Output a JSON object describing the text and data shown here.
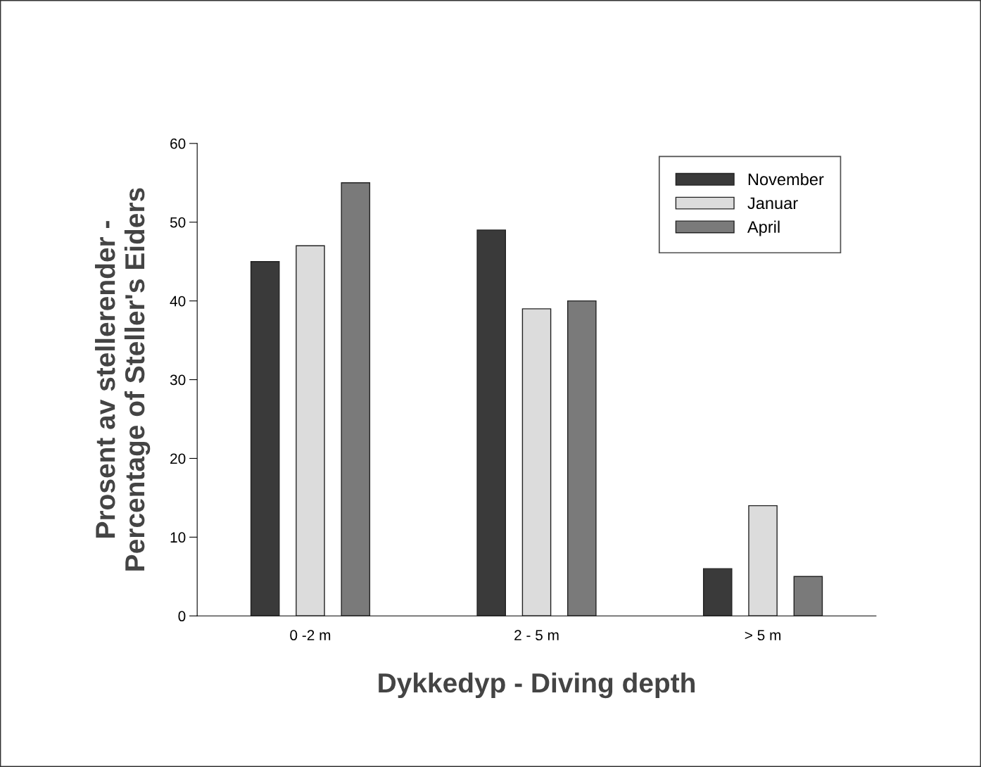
{
  "chart_data": {
    "type": "bar",
    "xlabel": "Dykkedyp - Diving depth",
    "ylabel": "Prosent av stellerender -\nPercentage of Steller's Eiders",
    "categories": [
      "0 -2 m",
      "2 - 5 m",
      "> 5 m"
    ],
    "series": [
      {
        "name": "November",
        "color": "#3a3a3a",
        "values": [
          45,
          49,
          6
        ]
      },
      {
        "name": "Januar",
        "color": "#dcdcdc",
        "values": [
          47,
          39,
          14
        ]
      },
      {
        "name": "April",
        "color": "#7a7a7a",
        "values": [
          55,
          40,
          5
        ]
      }
    ],
    "ylim": [
      0,
      60
    ],
    "yticks": [
      0,
      10,
      20,
      30,
      40,
      50,
      60
    ],
    "grid": false,
    "legend": "top right"
  }
}
